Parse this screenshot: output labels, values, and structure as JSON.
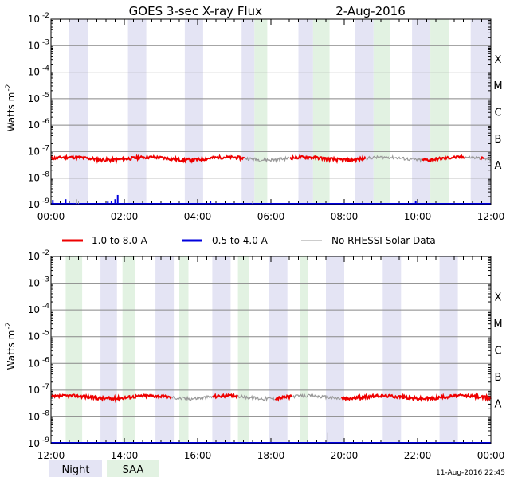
{
  "title": "GOES 3-sec X-ray Flux",
  "date": "2-Aug-2016",
  "timestamp": "11-Aug-2016 22:45",
  "legend": {
    "series": [
      {
        "label": "1.0 to 8.0 A",
        "color": "#ee0000"
      },
      {
        "label": "0.5 to 4.0 A",
        "color": "#0000dd"
      },
      {
        "label": "No RHESSI Solar Data",
        "color": "#999999"
      }
    ],
    "night_label": "Night",
    "saa_label": "SAA",
    "night_color": "#e4e4f4",
    "saa_color": "#e2f2e2"
  },
  "chart_data": [
    {
      "type": "line",
      "panel": "top",
      "ylabel": "Watts m^-2",
      "yscale": "log",
      "ylim": [
        1e-09,
        0.01
      ],
      "y_ticks": [
        "10^-9",
        "10^-8",
        "10^-7",
        "10^-6",
        "10^-5",
        "10^-4",
        "10^-3",
        "10^-2"
      ],
      "xlim": [
        "00:00",
        "12:00"
      ],
      "x_ticks": [
        "00:00",
        "02:00",
        "04:00",
        "06:00",
        "08:00",
        "10:00",
        "12:00"
      ],
      "class_labels": [
        "A",
        "B",
        "C",
        "M",
        "X"
      ],
      "grid": true,
      "night_intervals": [
        [
          0.5,
          1.0
        ],
        [
          2.1,
          2.6
        ],
        [
          3.65,
          4.15
        ],
        [
          5.2,
          5.55
        ],
        [
          6.75,
          7.15
        ],
        [
          8.3,
          8.8
        ],
        [
          9.85,
          10.35
        ],
        [
          11.45,
          12.0
        ]
      ],
      "saa_intervals": [
        [
          5.55,
          5.9
        ],
        [
          7.15,
          7.6
        ],
        [
          8.8,
          9.25
        ],
        [
          10.35,
          10.85
        ]
      ],
      "series": [
        {
          "name": "1.0 to 8.0 A",
          "color": "#ee0000",
          "baseline": 5.5e-08,
          "gray_intervals": [
            [
              5.3,
              6.5
            ],
            [
              8.6,
              10.1
            ],
            [
              11.3,
              11.7
            ],
            [
              11.8,
              12.0
            ]
          ]
        },
        {
          "name": "0.5 to 4.0 A",
          "color": "#0000dd",
          "baseline": 1e-09,
          "spikes": [
            [
              0.05,
              1.5e-09
            ],
            [
              0.4,
              1.6e-09
            ],
            [
              1.55,
              1.3e-09
            ],
            [
              1.65,
              1.4e-09
            ],
            [
              1.75,
              1.6e-09
            ],
            [
              1.82,
              2.3e-09
            ],
            [
              4.35,
              1.4e-09
            ],
            [
              9.95,
              1.4e-09
            ]
          ],
          "gray_spikes": [
            [
              0.6,
              1.5e-09
            ],
            [
              0.7,
              1.6e-09
            ],
            [
              0.75,
              1.4e-09
            ],
            [
              5.5,
              1.3e-09
            ]
          ]
        }
      ]
    },
    {
      "type": "line",
      "panel": "bottom",
      "ylabel": "Watts m^-2",
      "yscale": "log",
      "ylim": [
        1e-09,
        0.01
      ],
      "y_ticks": [
        "10^-9",
        "10^-8",
        "10^-7",
        "10^-6",
        "10^-5",
        "10^-4",
        "10^-3",
        "10^-2"
      ],
      "xlim": [
        "12:00",
        "00:00"
      ],
      "x_ticks": [
        "12:00",
        "14:00",
        "16:00",
        "18:00",
        "20:00",
        "22:00",
        "00:00"
      ],
      "class_labels": [
        "A",
        "B",
        "C",
        "M",
        "X"
      ],
      "grid": true,
      "night_intervals": [
        [
          13.35,
          13.8
        ],
        [
          14.85,
          15.35
        ],
        [
          16.4,
          16.9
        ],
        [
          17.95,
          18.45
        ],
        [
          19.5,
          20.0
        ],
        [
          21.05,
          21.55
        ],
        [
          22.6,
          23.1
        ]
      ],
      "saa_intervals": [
        [
          12.4,
          12.85
        ],
        [
          13.95,
          14.3
        ],
        [
          15.5,
          15.75
        ],
        [
          17.1,
          17.4
        ],
        [
          18.8,
          19.0
        ]
      ],
      "series": [
        {
          "name": "1.0 to 8.0 A",
          "color": "#ee0000",
          "baseline": 5.5e-08,
          "gray_intervals": [
            [
              15.3,
              16.4
            ],
            [
              17.1,
              18.1
            ],
            [
              18.6,
              19.9
            ]
          ]
        },
        {
          "name": "0.5 to 4.0 A",
          "color": "#0000dd",
          "baseline": 1e-09,
          "gray_spikes": [
            [
              19.55,
              2.5e-09
            ]
          ]
        }
      ]
    }
  ]
}
